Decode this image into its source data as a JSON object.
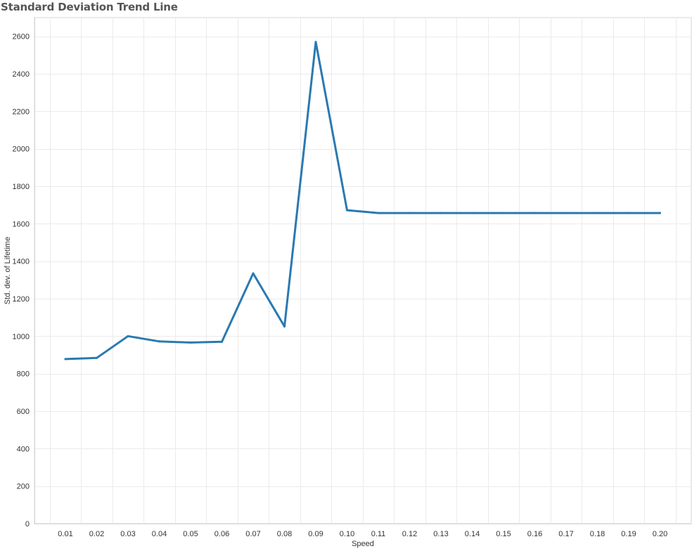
{
  "chart_data": {
    "type": "line",
    "title": "Standard Deviation Trend Line",
    "xlabel": "Speed",
    "ylabel": "Std. dev. of Lifetime",
    "categories": [
      "0.01",
      "0.02",
      "0.03",
      "0.04",
      "0.05",
      "0.06",
      "0.07",
      "0.08",
      "0.09",
      "0.10",
      "0.11",
      "0.12",
      "0.13",
      "0.14",
      "0.15",
      "0.16",
      "0.17",
      "0.18",
      "0.19",
      "0.20"
    ],
    "series": [
      {
        "values": [
          878,
          884,
          1000,
          972,
          966,
          970,
          1335,
          1052,
          2570,
          1672,
          1657,
          1657,
          1657,
          1657,
          1657,
          1657,
          1657,
          1657,
          1657,
          1657
        ]
      }
    ],
    "y_ticks": [
      0,
      200,
      400,
      600,
      800,
      1000,
      1200,
      1400,
      1600,
      1800,
      2000,
      2200,
      2400,
      2600
    ],
    "ylim": [
      0,
      2700
    ],
    "grid": true,
    "line_color": "#2a79b1",
    "grid_color": "#ebebeb",
    "axis_color": "#d4d4d4"
  }
}
